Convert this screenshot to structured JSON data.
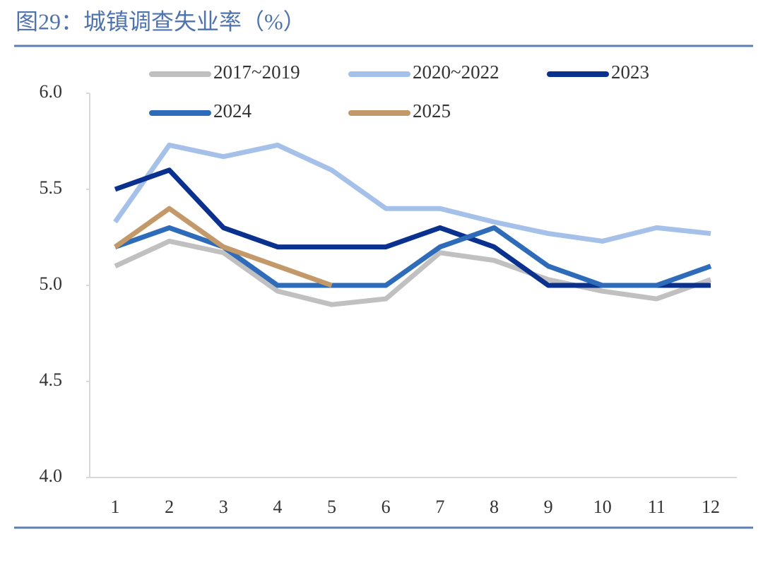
{
  "chart_data": {
    "type": "line",
    "title": "图29：城镇调查失业率（%）",
    "categories": [
      "1",
      "2",
      "3",
      "4",
      "5",
      "6",
      "7",
      "8",
      "9",
      "10",
      "11",
      "12"
    ],
    "series": [
      {
        "name": "2017~2019",
        "color": "#c0c0c0",
        "values": [
          5.1,
          5.23,
          5.17,
          4.97,
          4.9,
          4.93,
          5.17,
          5.13,
          5.03,
          4.97,
          4.93,
          5.03
        ]
      },
      {
        "name": "2020~2022",
        "color": "#a6c1e9",
        "values": [
          5.33,
          5.73,
          5.67,
          5.73,
          5.6,
          5.4,
          5.4,
          5.33,
          5.27,
          5.23,
          5.3,
          5.27
        ]
      },
      {
        "name": "2023",
        "color": "#0b318f",
        "values": [
          5.5,
          5.6,
          5.3,
          5.2,
          5.2,
          5.2,
          5.3,
          5.2,
          5.0,
          5.0,
          5.0,
          5.0
        ]
      },
      {
        "name": "2024",
        "color": "#2e6bb8",
        "values": [
          5.2,
          5.3,
          5.2,
          5.0,
          5.0,
          5.0,
          5.2,
          5.3,
          5.1,
          5.0,
          5.0,
          5.1
        ]
      },
      {
        "name": "2025",
        "color": "#c3996a",
        "values": [
          5.2,
          5.4,
          5.2,
          5.1,
          5.0,
          null,
          null,
          null,
          null,
          null,
          null,
          null
        ]
      }
    ],
    "ylim": [
      4,
      6
    ],
    "yticks": [
      {
        "value": 4,
        "label": "4.0"
      },
      {
        "value": 4.5,
        "label": "4.5"
      },
      {
        "value": 5,
        "label": "5.0"
      },
      {
        "value": 5.5,
        "label": "5.5"
      },
      {
        "value": 6,
        "label": "6.0"
      }
    ],
    "grid": false
  }
}
